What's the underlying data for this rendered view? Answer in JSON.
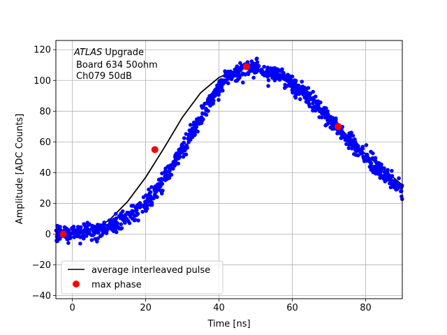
{
  "chart_data": {
    "type": "scatter",
    "title": "",
    "annotation_lines": [
      {
        "italic": "ATLAS",
        "rest": " Upgrade"
      },
      {
        "italic": "",
        "rest": "Board 634 50ohm"
      },
      {
        "italic": "",
        "rest": "Ch079 50dB"
      }
    ],
    "xlabel": "Time [ns]",
    "ylabel": "Amplitude [ADC Counts]",
    "xlim": [
      -4.5,
      90
    ],
    "ylim": [
      -42,
      126
    ],
    "xticks": [
      0,
      20,
      40,
      60,
      80
    ],
    "yticks": [
      -40,
      -20,
      0,
      20,
      40,
      60,
      80,
      100,
      120
    ],
    "grid": true,
    "legend": {
      "position": "lower-left",
      "entries": [
        {
          "label": "average interleaved pulse",
          "style": "line",
          "color": "#000000"
        },
        {
          "label": "max phase",
          "style": "marker",
          "color": "#ff0000"
        }
      ]
    },
    "samples": {
      "color": "#0000ff",
      "x_range": [
        -4.5,
        90
      ],
      "pulse_model": {
        "baseline": 0,
        "peak": 108,
        "peak_time": 48,
        "rise_sigma": 15.5,
        "fall_sigma": 26
      },
      "noise_amplitude": 4.5,
      "count": 1100
    },
    "average_pulse": {
      "color": "#000000",
      "x": [
        -4.5,
        0,
        5,
        10,
        15,
        20,
        25,
        30,
        35,
        40,
        45,
        48,
        50,
        55,
        60,
        65,
        70,
        75,
        80,
        85,
        90
      ],
      "y": [
        0,
        0.5,
        2.5,
        9,
        21,
        37,
        56,
        76,
        92,
        102,
        107,
        108,
        107.5,
        104,
        97,
        88,
        77,
        64,
        52,
        42,
        32
      ]
    },
    "max_phase": {
      "color": "#ff0000",
      "points": [
        {
          "x": -2.5,
          "y": 0
        },
        {
          "x": 22.5,
          "y": 55
        },
        {
          "x": 47.5,
          "y": 109
        },
        {
          "x": 72.5,
          "y": 70
        }
      ]
    }
  }
}
